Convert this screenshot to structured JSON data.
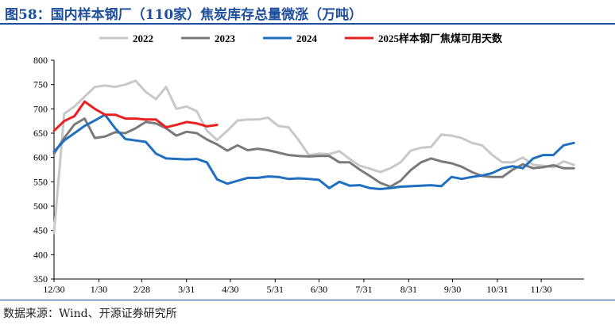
{
  "title": "图58：国内样本钢厂（110家）焦炭库存总量微涨（万吨）",
  "source": "数据来源：Wind、开源证券研究所",
  "colors": {
    "title": "#1f4e9c",
    "s2022": "#c8c8c8",
    "s2023": "#7a7a7a",
    "s2024": "#1f6fc0",
    "s2025": "#e8201f"
  },
  "chart_data": {
    "type": "line",
    "title": "",
    "xlabel": "",
    "ylabel": "",
    "ylim": [
      350,
      800
    ],
    "yticks": [
      350,
      400,
      450,
      500,
      550,
      600,
      650,
      700,
      750,
      800
    ],
    "x_unit": "weeks since 12/30",
    "x_range": [
      0,
      52
    ],
    "xtick_labels": [
      "12/30",
      "1/30",
      "2/28",
      "3/31",
      "4/30",
      "5/31",
      "6/30",
      "7/31",
      "8/31",
      "9/30",
      "10/31",
      "11/30"
    ],
    "xtick_positions": [
      0,
      4.4,
      8.6,
      13.0,
      17.3,
      21.7,
      26.0,
      30.4,
      34.8,
      39.1,
      43.5,
      47.8
    ],
    "grid": false,
    "legend_position": "top",
    "series": [
      {
        "name": "2022",
        "x": [
          0,
          1,
          2,
          3,
          4,
          5,
          6,
          7,
          8,
          9,
          10,
          11,
          12,
          13,
          14,
          15,
          16,
          17,
          18,
          19,
          20,
          21,
          22,
          23,
          24,
          25,
          26,
          27,
          28,
          29,
          30,
          31,
          32,
          33,
          34,
          35,
          36,
          37,
          38,
          39,
          40,
          41,
          42,
          43,
          44,
          45,
          46,
          47,
          48,
          49,
          50,
          51
        ],
        "values": [
          445,
          690,
          705,
          725,
          745,
          748,
          745,
          750,
          758,
          735,
          720,
          745,
          700,
          705,
          695,
          655,
          636,
          655,
          676,
          678,
          678,
          682,
          665,
          662,
          636,
          605,
          608,
          607,
          613,
          597,
          583,
          577,
          570,
          578,
          590,
          614,
          620,
          622,
          647,
          645,
          640,
          630,
          625,
          605,
          590,
          590,
          600,
          585,
          583,
          580,
          592,
          585
        ]
      },
      {
        "name": "2023",
        "x": [
          0,
          1,
          2,
          3,
          4,
          5,
          6,
          7,
          8,
          9,
          10,
          11,
          12,
          13,
          14,
          15,
          16,
          17,
          18,
          19,
          20,
          21,
          22,
          23,
          24,
          25,
          26,
          27,
          28,
          29,
          30,
          31,
          32,
          33,
          34,
          35,
          36,
          37,
          38,
          39,
          40,
          41,
          42,
          43,
          44,
          45,
          46,
          47,
          48,
          49,
          50,
          51
        ],
        "values": [
          608,
          640,
          668,
          680,
          640,
          643,
          652,
          650,
          660,
          673,
          670,
          660,
          645,
          653,
          650,
          637,
          627,
          614,
          625,
          615,
          618,
          615,
          610,
          605,
          603,
          602,
          603,
          603,
          590,
          590,
          575,
          562,
          548,
          540,
          552,
          574,
          590,
          598,
          592,
          588,
          581,
          570,
          562,
          560,
          560,
          575,
          586,
          578,
          580,
          584,
          578,
          578
        ]
      },
      {
        "name": "2024",
        "x": [
          0,
          1,
          2,
          3,
          4,
          5,
          6,
          7,
          8,
          9,
          10,
          11,
          12,
          13,
          14,
          15,
          16,
          17,
          18,
          19,
          20,
          21,
          22,
          23,
          24,
          25,
          26,
          27,
          28,
          29,
          30,
          31,
          32,
          33,
          34,
          35,
          36,
          37,
          38,
          39,
          40,
          41,
          42,
          43,
          44,
          45,
          46,
          47,
          48,
          49,
          50,
          51
        ],
        "values": [
          612,
          635,
          650,
          665,
          676,
          688,
          660,
          638,
          635,
          632,
          608,
          598,
          597,
          596,
          597,
          590,
          555,
          546,
          552,
          558,
          558,
          561,
          560,
          556,
          557,
          556,
          554,
          537,
          550,
          542,
          543,
          537,
          535,
          537,
          540,
          541,
          542,
          543,
          541,
          560,
          556,
          560,
          563,
          568,
          578,
          582,
          578,
          598,
          605,
          605,
          625,
          630
        ]
      },
      {
        "name": "2025样本钢厂焦煤可用天数",
        "x": [
          0,
          1,
          2,
          3,
          4,
          5,
          6,
          7,
          8,
          9,
          10,
          11,
          12,
          13,
          14,
          15,
          16
        ],
        "values": [
          655,
          675,
          685,
          715,
          700,
          688,
          688,
          680,
          680,
          678,
          678,
          662,
          667,
          673,
          670,
          664,
          667
        ]
      }
    ]
  }
}
